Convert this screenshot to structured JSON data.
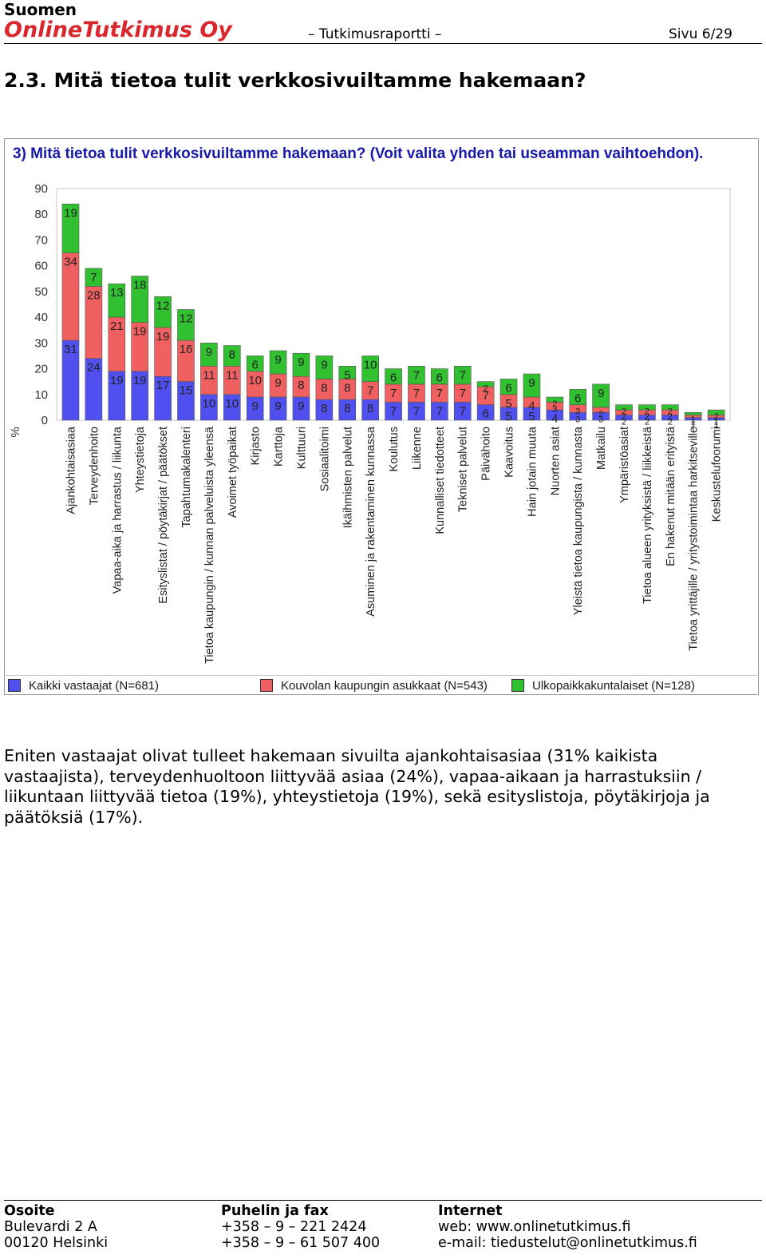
{
  "header": {
    "company_line1": "Suomen",
    "company_line2": "OnlineTutkimus Oy",
    "center": "– Tutkimusraportti –",
    "page": "Sivu 6/29"
  },
  "section_title": "2.3. Mitä tietoa tulit verkkosivuiltamme hakemaan?",
  "colors": {
    "brand_red": "#d9272e",
    "title_blue": "#1a1aa8"
  },
  "chart_data": {
    "type": "bar",
    "stacked": true,
    "title": "3) Mitä tietoa tulit verkkosivuiltamme hakemaan? (Voit valita yhden tai useamman vaihtoehdon).",
    "ylabel": "%",
    "ylim": [
      0,
      90
    ],
    "yticks": [
      0,
      10,
      20,
      30,
      40,
      50,
      60,
      70,
      80,
      90
    ],
    "grid": false,
    "legend_position": "bottom",
    "categories": [
      "Ajankohtaisasiaa",
      "Terveydenhoito",
      "Vapaa-aika ja harrastus / liikunta",
      "Yhteystietoja",
      "Esityslistat / pöytäkirjat / päätökset",
      "Tapahtumakalenteri",
      "Tietoa kaupungin / kunnan palveluista yleensä",
      "Avoimet työpaikat",
      "Kirjasto",
      "Karttoja",
      "Kulttuuri",
      "Sosiaalitoimi",
      "Ikäihmisten palvelut",
      "Asuminen ja rakentaminen kunnassa",
      "Koulutus",
      "Liikenne",
      "Kunnalliset tiedotteet",
      "Tekniset palvelut",
      "Päivähoito",
      "Kaavoitus",
      "Hain jotain muuta",
      "Nuorten asiat",
      "Yleistä tietoa kaupungista / kunnasta",
      "Matkailu",
      "Ympäristöasiat",
      "Tietoa alueen yrityksistä / liikkeistä",
      "En hakenut mitään erityistä",
      "Tietoa yrittäjille / yritystoimintaa harkitseville",
      "Keskustelufoorumi"
    ],
    "series": [
      {
        "name": "Kaikki vastaajat (N=681)",
        "color": "#5050f0",
        "values": [
          31,
          24,
          19,
          19,
          17,
          15,
          10,
          10,
          9,
          9,
          9,
          8,
          8,
          8,
          7,
          7,
          7,
          7,
          6,
          5,
          5,
          4,
          3,
          3,
          2,
          2,
          2,
          1,
          1
        ],
        "labels": [
          "31",
          "24",
          "19",
          "19",
          "17",
          "15",
          "10",
          "10",
          "9",
          "9",
          "9",
          "8",
          "8",
          "8",
          "7",
          "7",
          "7",
          "7",
          "6",
          "5",
          "5",
          "4",
          "3",
          "3",
          "2",
          "2",
          "2",
          "1",
          "1"
        ]
      },
      {
        "name": "Kouvolan kaupungin asukkaat (N=543)",
        "color": "#f06060",
        "values": [
          34,
          28,
          21,
          19,
          19,
          16,
          11,
          11,
          10,
          9,
          8,
          8,
          8,
          7,
          7,
          7,
          7,
          7,
          7,
          5,
          4,
          3,
          3,
          2,
          2,
          2,
          2,
          1,
          1
        ],
        "labels": [
          "34",
          "28",
          "21",
          "19",
          "19",
          "16",
          "11",
          "11",
          "10",
          "9",
          "8",
          "8",
          "8",
          "7",
          "7",
          "7",
          "7",
          "7",
          "7",
          "5",
          "4",
          "3",
          "3",
          "2",
          "2",
          "2",
          "2",
          "1",
          "1"
        ]
      },
      {
        "name": "Ulkopaikkakuntalaiset (N=128)",
        "color": "#30c030",
        "values": [
          19,
          7,
          13,
          18,
          12,
          12,
          9,
          8,
          6,
          9,
          9,
          9,
          5,
          10,
          6,
          7,
          6,
          7,
          2,
          6,
          9,
          2,
          6,
          9,
          2,
          2,
          2,
          1,
          2
        ],
        "labels": [
          "19",
          "7",
          "13",
          "18",
          "12",
          "12",
          "9",
          "8",
          "6",
          "9",
          "9",
          "9",
          "5",
          "10",
          "6",
          "7",
          "6",
          "7",
          "2",
          "6",
          "9",
          "2",
          "6",
          "9",
          "2",
          "2",
          "2",
          "1",
          "2"
        ]
      }
    ]
  },
  "body_text": "Eniten vastaajat olivat tulleet hakemaan sivuilta ajankohtaisasiaa (31% kaikista vastaajista), terveydenhuoltoon liittyvää asiaa (24%), vapaa-aikaan ja harrastuksiin / liikuntaan liittyvää tietoa (19%), yhteystietoja (19%), sekä esityslistoja, pöytäkirjoja ja päätöksiä (17%).",
  "footer": {
    "address": {
      "heading": "Osoite",
      "line1": "Bulevardi 2 A",
      "line2": "00120 Helsinki"
    },
    "phone": {
      "heading": "Puhelin ja fax",
      "line1": "+358 – 9 – 221 2424",
      "line2": "+358 – 9 – 61 507 400"
    },
    "internet": {
      "heading": "Internet",
      "line1": "web: www.onlinetutkimus.fi",
      "line2": "e-mail: tiedustelut@onlinetutkimus.fi"
    }
  }
}
